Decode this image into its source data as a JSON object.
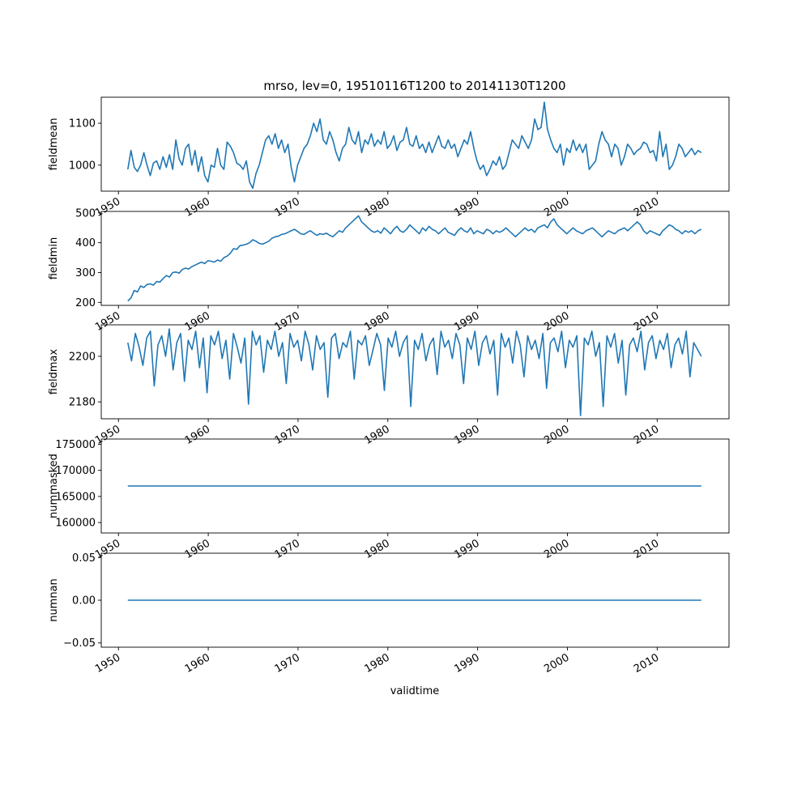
{
  "chart_data": {
    "type": "line",
    "title": "mrso, lev=0, 19510116T1200 to 20141130T1200",
    "xlabel": "validtime",
    "x_range": [
      "1948-02-01",
      "2017-12-31"
    ],
    "x_start": "1951-01-16",
    "x_end": "2014-11-30",
    "x_ticks": [
      "1950",
      "1960",
      "1970",
      "1980",
      "1990",
      "2000",
      "2010"
    ],
    "line_color": "#1f77b4",
    "grid": false,
    "panels": [
      {
        "ylabel": "fieldmean",
        "ylim": [
          938,
          1162
        ],
        "y_ticks": [
          {
            "value": 1000,
            "label": "1000"
          },
          {
            "value": 1100,
            "label": "1100"
          }
        ],
        "series": [
          {
            "values": [
              990,
              1035,
              995,
              985,
              1000,
              1030,
              1000,
              975,
              1005,
              1010,
              990,
              1020,
              995,
              1025,
              990,
              1060,
              1015,
              1000,
              1040,
              1050,
              1000,
              1035,
              985,
              1020,
              975,
              960,
              1000,
              995,
              1040,
              1000,
              990,
              1055,
              1045,
              1030,
              1005,
              1000,
              990,
              1010,
              960,
              945,
              980,
              1000,
              1030,
              1060,
              1070,
              1050,
              1075,
              1040,
              1060,
              1030,
              1050,
              995,
              960,
              1000,
              1020,
              1040,
              1050,
              1070,
              1100,
              1080,
              1110,
              1060,
              1050,
              1080,
              1060,
              1030,
              1010,
              1040,
              1050,
              1090,
              1060,
              1050,
              1080,
              1030,
              1060,
              1050,
              1075,
              1045,
              1060,
              1050,
              1080,
              1040,
              1050,
              1070,
              1035,
              1055,
              1060,
              1090,
              1050,
              1045,
              1070,
              1040,
              1050,
              1030,
              1055,
              1030,
              1050,
              1070,
              1045,
              1040,
              1060,
              1040,
              1050,
              1020,
              1040,
              1060,
              1050,
              1080,
              1040,
              1010,
              990,
              1000,
              975,
              990,
              1010,
              1000,
              1020,
              990,
              1000,
              1030,
              1060,
              1050,
              1040,
              1070,
              1055,
              1040,
              1060,
              1110,
              1085,
              1090,
              1150,
              1085,
              1060,
              1040,
              1030,
              1050,
              1000,
              1040,
              1030,
              1060,
              1035,
              1050,
              1030,
              1050,
              990,
              1000,
              1010,
              1050,
              1080,
              1060,
              1050,
              1020,
              1050,
              1040,
              1000,
              1020,
              1050,
              1040,
              1025,
              1035,
              1040,
              1055,
              1050,
              1030,
              1035,
              1010,
              1080,
              1020,
              1050,
              990,
              1000,
              1020,
              1050,
              1040,
              1020,
              1030,
              1040,
              1025,
              1035,
              1030
            ]
          }
        ]
      },
      {
        "ylabel": "fieldmin",
        "ylim": [
          190,
          505
        ],
        "y_ticks": [
          {
            "value": 200,
            "label": "200"
          },
          {
            "value": 300,
            "label": "300"
          },
          {
            "value": 400,
            "label": "400"
          },
          {
            "value": 500,
            "label": "500"
          }
        ],
        "series": [
          {
            "values": [
              205,
              215,
              240,
              235,
              255,
              250,
              260,
              262,
              258,
              270,
              268,
              280,
              290,
              285,
              300,
              302,
              298,
              310,
              315,
              312,
              320,
              325,
              330,
              335,
              330,
              340,
              338,
              335,
              342,
              338,
              350,
              355,
              365,
              380,
              378,
              390,
              392,
              395,
              400,
              410,
              405,
              398,
              395,
              400,
              405,
              415,
              420,
              422,
              428,
              430,
              435,
              440,
              445,
              438,
              430,
              428,
              435,
              440,
              432,
              425,
              430,
              428,
              432,
              425,
              420,
              430,
              440,
              435,
              450,
              460,
              470,
              480,
              490,
              470,
              460,
              450,
              440,
              435,
              440,
              432,
              450,
              440,
              430,
              445,
              455,
              440,
              435,
              445,
              460,
              450,
              440,
              430,
              450,
              440,
              455,
              445,
              440,
              430,
              440,
              450,
              435,
              430,
              425,
              440,
              450,
              440,
              435,
              450,
              430,
              440,
              435,
              430,
              445,
              440,
              430,
              440,
              435,
              440,
              450,
              440,
              430,
              420,
              430,
              440,
              450,
              440,
              445,
              435,
              450,
              455,
              460,
              450,
              470,
              480,
              460,
              450,
              440,
              430,
              440,
              450,
              440,
              435,
              430,
              440,
              445,
              450,
              440,
              430,
              420,
              430,
              440,
              435,
              430,
              440,
              445,
              450,
              440,
              450,
              460,
              470,
              460,
              440,
              430,
              440,
              435,
              430,
              425,
              440,
              450,
              460,
              455,
              445,
              440,
              430,
              440,
              435,
              440,
              430,
              440,
              445
            ]
          }
        ]
      },
      {
        "ylabel": "fieldmax",
        "ylim": [
          2172.6,
          2213.8
        ],
        "y_ticks": [
          {
            "value": 2180,
            "label": "2180"
          },
          {
            "value": 2200,
            "label": "2200"
          }
        ],
        "series": [
          {
            "values": [
              2206,
              2198,
              2210,
              2204,
              2196,
              2208,
              2211,
              2187,
              2205,
              2209,
              2200,
              2212,
              2194,
              2206,
              2210,
              2189,
              2207,
              2203,
              2211,
              2195,
              2208,
              2184,
              2209,
              2205,
              2211,
              2199,
              2207,
              2190,
              2210,
              2204,
              2197,
              2208,
              2179,
              2211,
              2205,
              2209,
              2193,
              2207,
              2203,
              2211,
              2200,
              2206,
              2188,
              2210,
              2204,
              2207,
              2198,
              2211,
              2205,
              2194,
              2209,
              2203,
              2206,
              2182,
              2208,
              2210,
              2199,
              2206,
              2204,
              2211,
              2190,
              2207,
              2205,
              2209,
              2196,
              2203,
              2210,
              2205,
              2185,
              2208,
              2204,
              2211,
              2200,
              2206,
              2209,
              2178,
              2207,
              2203,
              2210,
              2198,
              2205,
              2208,
              2192,
              2211,
              2204,
              2207,
              2199,
              2210,
              2205,
              2188,
              2208,
              2203,
              2211,
              2196,
              2206,
              2209,
              2201,
              2207,
              2183,
              2210,
              2204,
              2208,
              2197,
              2211,
              2205,
              2191,
              2209,
              2203,
              2207,
              2199,
              2210,
              2186,
              2206,
              2208,
              2202,
              2211,
              2195,
              2207,
              2204,
              2209,
              2174,
              2208,
              2205,
              2211,
              2200,
              2206,
              2178,
              2209,
              2204,
              2210,
              2197,
              2207,
              2183,
              2205,
              2208,
              2202,
              2211,
              2194,
              2206,
              2209,
              2199,
              2207,
              2203,
              2210,
              2195,
              2205,
              2208,
              2201,
              2211,
              2191,
              2206,
              2203,
              2200
            ]
          }
        ]
      },
      {
        "ylabel": "nummasked",
        "ylim": [
          158000,
          176000
        ],
        "y_ticks": [
          {
            "value": 160000,
            "label": "160000"
          },
          {
            "value": 165000,
            "label": "165000"
          },
          {
            "value": 170000,
            "label": "170000"
          },
          {
            "value": 175000,
            "label": "175000"
          }
        ],
        "series": [
          {
            "values": [
              167000,
              167000
            ]
          }
        ]
      },
      {
        "ylabel": "numnan",
        "ylim": [
          -0.055,
          0.055
        ],
        "y_ticks": [
          {
            "value": -0.05,
            "label": "−0.05"
          },
          {
            "value": 0,
            "label": "0.00"
          },
          {
            "value": 0.05,
            "label": "0.05"
          }
        ],
        "series": [
          {
            "values": [
              0,
              0
            ]
          }
        ]
      }
    ]
  }
}
